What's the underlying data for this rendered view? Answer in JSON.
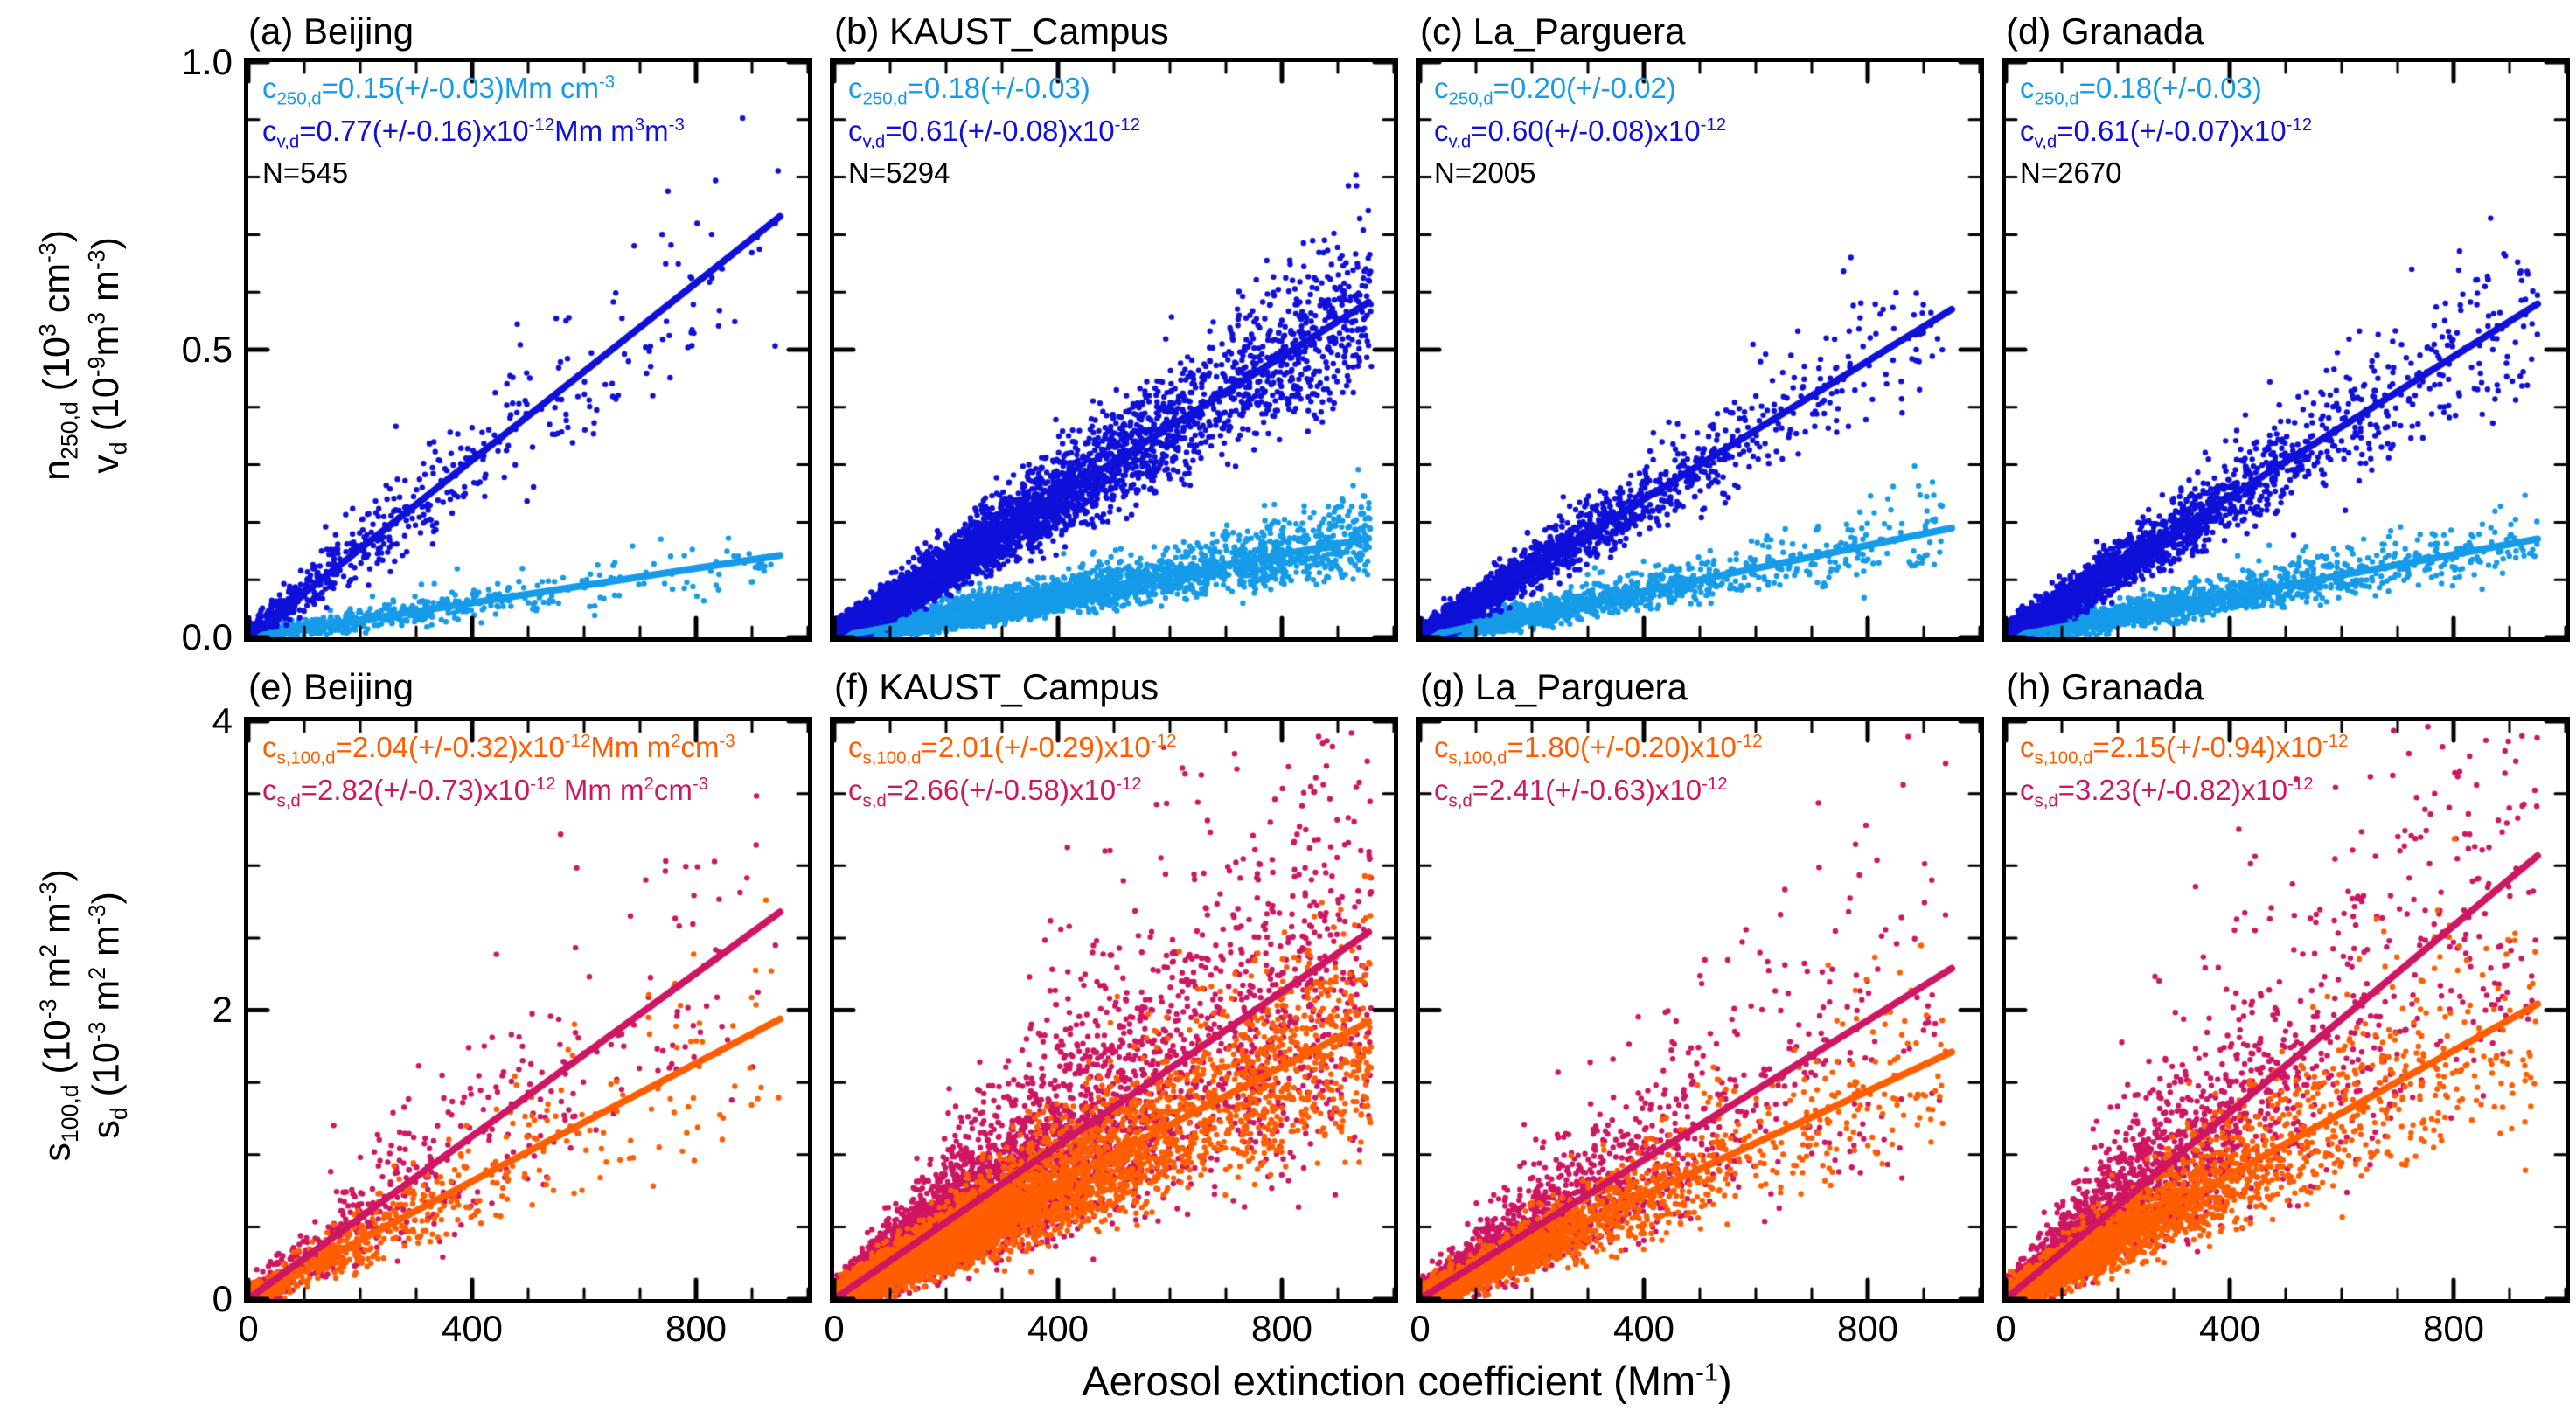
{
  "figure": {
    "x_axis_title_html": "Aerosol extinction coefficient (Mm<sup>-1</sup>)",
    "x_tick_labels": [
      "0",
      "400",
      "800"
    ],
    "top_row": {
      "y_label_line1_html": "n<sub>250,d</sub> (10<sup>3</sup> cm<sup>-3</sup>)",
      "y_label_line2_html": "v<sub>d</sub> (10<sup>-9</sup>m<sup>3</sup> m<sup>-3</sup>)",
      "y_tick_display": [
        "1.0",
        "0.5",
        "0.0"
      ]
    },
    "bottom_row": {
      "y_label_line1_html": "s<sub>100,d</sub> (10<sup>-3</sup> m<sup>2</sup> m<sup>-3</sup>)",
      "y_label_line2_html": "s<sub>d</sub> (10<sup>-3</sup> m<sup>2</sup> m<sup>-3</sup>)",
      "y_tick_display": [
        "4",
        "2",
        "0"
      ]
    }
  },
  "chart_data": {
    "type": "scatter",
    "x_axis_title": "Aerosol extinction coefficient (Mm-1)",
    "x_range": [
      0,
      1000
    ],
    "x_ticks": [
      0,
      400,
      800
    ],
    "x_minor_step": 100,
    "sites": [
      "Beijing",
      "KAUST_Campus",
      "La_Parguera",
      "Granada"
    ],
    "colors": {
      "n250": "#169BE9",
      "volume": "#0F10D9",
      "s100": "#FF5E00",
      "surface": "#CE1663"
    },
    "panels": [
      {
        "id": "a",
        "title": "(a) Beijing",
        "site": "Beijing",
        "row": "top",
        "y_max": 1.0,
        "y_ticks": [
          0,
          0.5,
          1.0
        ],
        "y_minor_step": 0.1,
        "n_points": 545,
        "annotations": [
          {
            "html": "c<sub>250,d</sub>=0.15(+/-0.03)Mm cm<sup>-3</sup>",
            "color": "#169BE9"
          },
          {
            "html": "c<sub>v,d</sub>=0.77(+/-0.16)x10<sup>-12</sup>Mm m<sup>3</sup>m<sup>-3</sup>",
            "color": "#0F10D9"
          },
          {
            "html": "N=545",
            "color": "#000000"
          }
        ],
        "series": [
          {
            "name": "c250d",
            "slope": 0.15,
            "slope_err": 0.03,
            "units": "Mm cm-3",
            "color": "#169BE9",
            "points": 545,
            "sigma": 0.22,
            "abs_noise": 0.008,
            "x_mean": 280,
            "x_cap": 950,
            "line_end": 950
          },
          {
            "name": "cvd",
            "slope": 0.77,
            "slope_err": 0.16,
            "units": "x10-12 Mm m3 m-3",
            "color": "#0F10D9",
            "points": 545,
            "sigma": 0.17,
            "abs_noise": 0.015,
            "x_mean": 280,
            "x_cap": 950,
            "line_end": 950
          }
        ],
        "point_draw_order": [
          0,
          1
        ]
      },
      {
        "id": "b",
        "title": "(b) KAUST_Campus",
        "site": "KAUST_Campus",
        "row": "top",
        "y_max": 1.0,
        "y_ticks": [
          0,
          0.5,
          1.0
        ],
        "y_minor_step": 0.1,
        "n_points": 5294,
        "annotations": [
          {
            "html": "c<sub>250,d</sub>=0.18(+/-0.03)",
            "color": "#169BE9"
          },
          {
            "html": "c<sub>v,d</sub>=0.61(+/-0.08)x10<sup>-12</sup>",
            "color": "#0F10D9"
          },
          {
            "html": "N=5294",
            "color": "#000000"
          }
        ],
        "series": [
          {
            "name": "c250d",
            "slope": 0.18,
            "slope_err": 0.03,
            "units": "Mm cm-3",
            "color": "#169BE9",
            "points": 5294,
            "sigma": 0.2,
            "abs_noise": 0.007,
            "x_mean": 300,
            "x_cap": 960,
            "line_end": 955
          },
          {
            "name": "cvd",
            "slope": 0.61,
            "slope_err": 0.08,
            "units": "x10-12 Mm m3 m-3",
            "color": "#0F10D9",
            "points": 5294,
            "sigma": 0.14,
            "abs_noise": 0.012,
            "x_mean": 300,
            "x_cap": 960,
            "line_end": 955
          }
        ],
        "point_draw_order": [
          0,
          1
        ]
      },
      {
        "id": "c",
        "title": "(c) La_Parguera",
        "site": "La_Parguera",
        "row": "top",
        "y_max": 1.0,
        "y_ticks": [
          0,
          0.5,
          1.0
        ],
        "y_minor_step": 0.1,
        "n_points": 2005,
        "annotations": [
          {
            "html": "c<sub>250,d</sub>=0.20(+/-0.02)",
            "color": "#169BE9"
          },
          {
            "html": "c<sub>v,d</sub>=0.60(+/-0.08)x10<sup>-12</sup>",
            "color": "#0F10D9"
          },
          {
            "html": "N=2005",
            "color": "#000000"
          }
        ],
        "series": [
          {
            "name": "c250d",
            "slope": 0.2,
            "slope_err": 0.02,
            "units": "Mm cm-3",
            "color": "#169BE9",
            "points": 2005,
            "sigma": 0.2,
            "abs_noise": 0.007,
            "x_mean": 230,
            "x_cap": 940,
            "line_end": 950
          },
          {
            "name": "cvd",
            "slope": 0.6,
            "slope_err": 0.08,
            "units": "x10-12 Mm m3 m-3",
            "color": "#0F10D9",
            "points": 2005,
            "sigma": 0.13,
            "abs_noise": 0.012,
            "x_mean": 230,
            "x_cap": 940,
            "line_end": 950
          }
        ],
        "point_draw_order": [
          0,
          1
        ]
      },
      {
        "id": "d",
        "title": "(d) Granada",
        "site": "Granada",
        "row": "top",
        "y_max": 1.0,
        "y_ticks": [
          0,
          0.5,
          1.0
        ],
        "y_minor_step": 0.1,
        "n_points": 2670,
        "annotations": [
          {
            "html": "c<sub>250,d</sub>=0.18(+/-0.03)",
            "color": "#169BE9"
          },
          {
            "html": "c<sub>v,d</sub>=0.61(+/-0.07)x10<sup>-12</sup>",
            "color": "#0F10D9"
          },
          {
            "html": "N=2670",
            "color": "#000000"
          }
        ],
        "series": [
          {
            "name": "c250d",
            "slope": 0.18,
            "slope_err": 0.03,
            "units": "Mm cm-3",
            "color": "#169BE9",
            "points": 2670,
            "sigma": 0.2,
            "abs_noise": 0.007,
            "x_mean": 240,
            "x_cap": 950,
            "line_end": 950
          },
          {
            "name": "cvd",
            "slope": 0.61,
            "slope_err": 0.07,
            "units": "x10-12 Mm m3 m-3",
            "color": "#0F10D9",
            "points": 2670,
            "sigma": 0.14,
            "abs_noise": 0.012,
            "x_mean": 240,
            "x_cap": 950,
            "line_end": 950
          }
        ],
        "point_draw_order": [
          0,
          1
        ]
      },
      {
        "id": "e",
        "title": "(e) Beijing",
        "site": "Beijing",
        "row": "bottom",
        "y_max": 4.0,
        "y_ticks": [
          0,
          2,
          4
        ],
        "y_minor_step": 0.5,
        "n_points": 545,
        "annotations": [
          {
            "html": "c<sub>s,100,d</sub>=2.04(+/-0.32)x10<sup>-12</sup>Mm m<sup>2</sup>cm<sup>-3</sup>",
            "color": "#FF5E00"
          },
          {
            "html": "c<sub>s,d</sub>=2.82(+/-0.73)x10<sup>-12</sup> Mm m<sup>2</sup>cm<sup>-3</sup>",
            "color": "#CE1663"
          }
        ],
        "series": [
          {
            "name": "cs100d",
            "slope": 2.04,
            "slope_err": 0.32,
            "units": "x10-12 Mm m2 cm-3",
            "color": "#FF5E00",
            "points": 545,
            "sigma": 0.24,
            "abs_noise": 0.05,
            "x_mean": 280,
            "x_cap": 950,
            "line_end": 950
          },
          {
            "name": "csd",
            "slope": 2.82,
            "slope_err": 0.73,
            "units": "x10-12 Mm m2 cm-3",
            "color": "#CE1663",
            "points": 545,
            "sigma": 0.32,
            "abs_noise": 0.06,
            "x_mean": 280,
            "x_cap": 950,
            "line_end": 950
          }
        ],
        "point_draw_order": [
          1,
          0
        ]
      },
      {
        "id": "f",
        "title": "(f) KAUST_Campus",
        "site": "KAUST_Campus",
        "row": "bottom",
        "y_max": 4.0,
        "y_ticks": [
          0,
          2,
          4
        ],
        "y_minor_step": 0.5,
        "n_points": 5294,
        "annotations": [
          {
            "html": "c<sub>s,100,d</sub>=2.01(+/-0.29)x10<sup>-12</sup>",
            "color": "#FF5E00"
          },
          {
            "html": "c<sub>s,d</sub>=2.66(+/-0.58)x10<sup>-12</sup>",
            "color": "#CE1663"
          }
        ],
        "series": [
          {
            "name": "cs100d",
            "slope": 2.01,
            "slope_err": 0.29,
            "units": "x10-12 Mm m2 cm-3",
            "color": "#FF5E00",
            "points": 5294,
            "sigma": 0.24,
            "abs_noise": 0.05,
            "x_mean": 300,
            "x_cap": 960,
            "line_end": 955
          },
          {
            "name": "csd",
            "slope": 2.66,
            "slope_err": 0.58,
            "units": "x10-12 Mm m2 cm-3",
            "color": "#CE1663",
            "points": 5294,
            "sigma": 0.34,
            "abs_noise": 0.06,
            "x_mean": 300,
            "x_cap": 960,
            "line_end": 955
          }
        ],
        "point_draw_order": [
          1,
          0
        ]
      },
      {
        "id": "g",
        "title": "(g) La_Parguera",
        "site": "La_Parguera",
        "row": "bottom",
        "y_max": 4.0,
        "y_ticks": [
          0,
          2,
          4
        ],
        "y_minor_step": 0.5,
        "n_points": 2005,
        "annotations": [
          {
            "html": "c<sub>s,100,d</sub>=1.80(+/-0.20)x10<sup>-12</sup>",
            "color": "#FF5E00"
          },
          {
            "html": "c<sub>s,d</sub>=2.41(+/-0.63)x10<sup>-12</sup>",
            "color": "#CE1663"
          }
        ],
        "series": [
          {
            "name": "cs100d",
            "slope": 1.8,
            "slope_err": 0.2,
            "units": "x10-12 Mm m2 cm-3",
            "color": "#FF5E00",
            "points": 2005,
            "sigma": 0.22,
            "abs_noise": 0.05,
            "x_mean": 230,
            "x_cap": 940,
            "line_end": 950
          },
          {
            "name": "csd",
            "slope": 2.41,
            "slope_err": 0.63,
            "units": "x10-12 Mm m2 cm-3",
            "color": "#CE1663",
            "points": 2005,
            "sigma": 0.32,
            "abs_noise": 0.06,
            "x_mean": 230,
            "x_cap": 940,
            "line_end": 950
          }
        ],
        "point_draw_order": [
          1,
          0
        ]
      },
      {
        "id": "h",
        "title": "(h) Granada",
        "site": "Granada",
        "row": "bottom",
        "y_max": 4.0,
        "y_ticks": [
          0,
          2,
          4
        ],
        "y_minor_step": 0.5,
        "n_points": 2670,
        "annotations": [
          {
            "html": "c<sub>s,100,d</sub>=2.15(+/-0.94)x10<sup>-12</sup>",
            "color": "#FF5E00"
          },
          {
            "html": "c<sub>s,d</sub>=3.23(+/-0.82)x10<sup>-12</sup>",
            "color": "#CE1663"
          }
        ],
        "series": [
          {
            "name": "cs100d",
            "slope": 2.15,
            "slope_err": 0.94,
            "units": "x10-12 Mm m2 cm-3",
            "color": "#FF5E00",
            "points": 2670,
            "sigma": 0.24,
            "abs_noise": 0.05,
            "x_mean": 240,
            "x_cap": 950,
            "line_end": 950
          },
          {
            "name": "csd",
            "slope": 3.23,
            "slope_err": 0.82,
            "units": "x10-12 Mm m2 cm-3",
            "color": "#CE1663",
            "points": 2670,
            "sigma": 0.32,
            "abs_noise": 0.06,
            "x_mean": 240,
            "x_cap": 950,
            "line_end": 950
          }
        ],
        "point_draw_order": [
          1,
          0
        ]
      }
    ]
  }
}
